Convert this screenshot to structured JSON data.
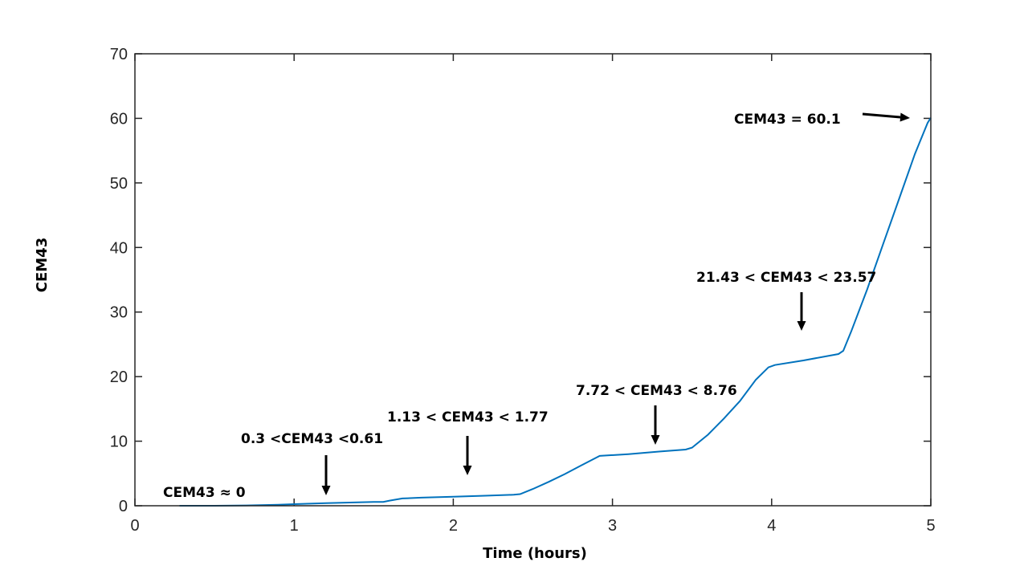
{
  "chart_data": {
    "type": "line",
    "title": "",
    "xlabel": "Time (hours)",
    "ylabel": "CEM43",
    "xlim": [
      0,
      5
    ],
    "ylim": [
      0,
      70
    ],
    "xticks": [
      0,
      1,
      2,
      3,
      4,
      5
    ],
    "yticks": [
      0,
      10,
      20,
      30,
      40,
      50,
      60,
      70
    ],
    "grid": false,
    "series": [
      {
        "name": "CEM43",
        "color": "#0072BD",
        "x": [
          0.28,
          0.5,
          0.7,
          0.9,
          1.0,
          1.1,
          1.2,
          1.3,
          1.4,
          1.5,
          1.56,
          1.6,
          1.68,
          1.8,
          2.0,
          2.2,
          2.38,
          2.42,
          2.5,
          2.6,
          2.7,
          2.8,
          2.92,
          2.97,
          3.1,
          3.3,
          3.46,
          3.5,
          3.6,
          3.7,
          3.8,
          3.9,
          3.98,
          4.02,
          4.2,
          4.42,
          4.45,
          4.5,
          4.6,
          4.7,
          4.8,
          4.9,
          4.98,
          5.0
        ],
        "y": [
          0.0,
          0.0,
          0.05,
          0.15,
          0.25,
          0.32,
          0.4,
          0.46,
          0.52,
          0.58,
          0.6,
          0.8,
          1.13,
          1.25,
          1.4,
          1.55,
          1.7,
          1.8,
          2.6,
          3.7,
          4.9,
          6.2,
          7.72,
          7.8,
          8.0,
          8.4,
          8.7,
          9.0,
          11.0,
          13.5,
          16.2,
          19.5,
          21.43,
          21.8,
          22.5,
          23.5,
          24.0,
          27.0,
          33.5,
          40.5,
          47.5,
          54.5,
          59.3,
          60.1
        ]
      }
    ],
    "annotations": [
      {
        "text": "CEM43 = 60.1",
        "x": 4.87,
        "y": 60.1
      },
      {
        "text": "21.43 < CEM43 < 23.57",
        "x": 4.17,
        "y": 27.5
      },
      {
        "text": "7.72 < CEM43 < 8.76",
        "x": 3.25,
        "y": 9.5
      },
      {
        "text": "1.13 < CEM43 < 1.77",
        "x": 2.07,
        "y": 4.8
      },
      {
        "text": "0.3 <CEM43 <0.61",
        "x": 1.19,
        "y": 1.6
      },
      {
        "text": "CEM43 ≈ 0",
        "x": 0.0,
        "y": 0.0
      }
    ]
  }
}
